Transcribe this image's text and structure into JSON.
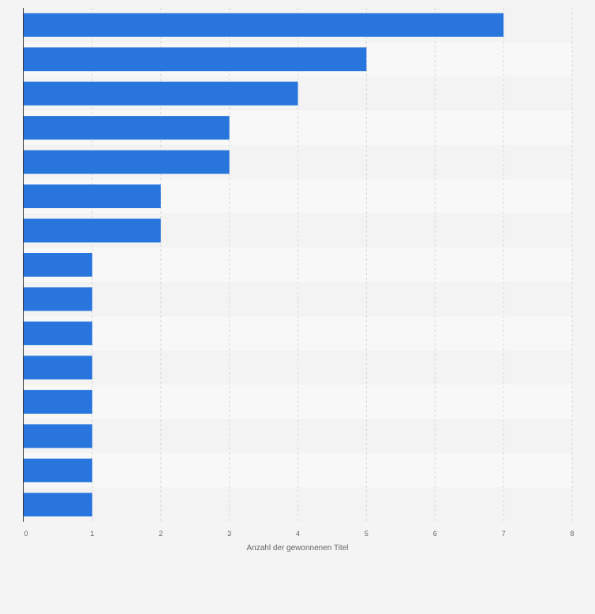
{
  "chart_data": {
    "type": "bar",
    "orientation": "horizontal",
    "values": [
      7,
      5,
      4,
      3,
      3,
      2,
      2,
      1,
      1,
      1,
      1,
      1,
      1,
      1,
      1
    ],
    "xlabel": "Anzahl der gewonnenen Titel",
    "xlim": [
      0,
      8
    ],
    "xticks": [
      "0",
      "1",
      "2",
      "3",
      "4",
      "5",
      "6",
      "7",
      "8"
    ],
    "grid": true,
    "bar_color": "#2876dd"
  }
}
